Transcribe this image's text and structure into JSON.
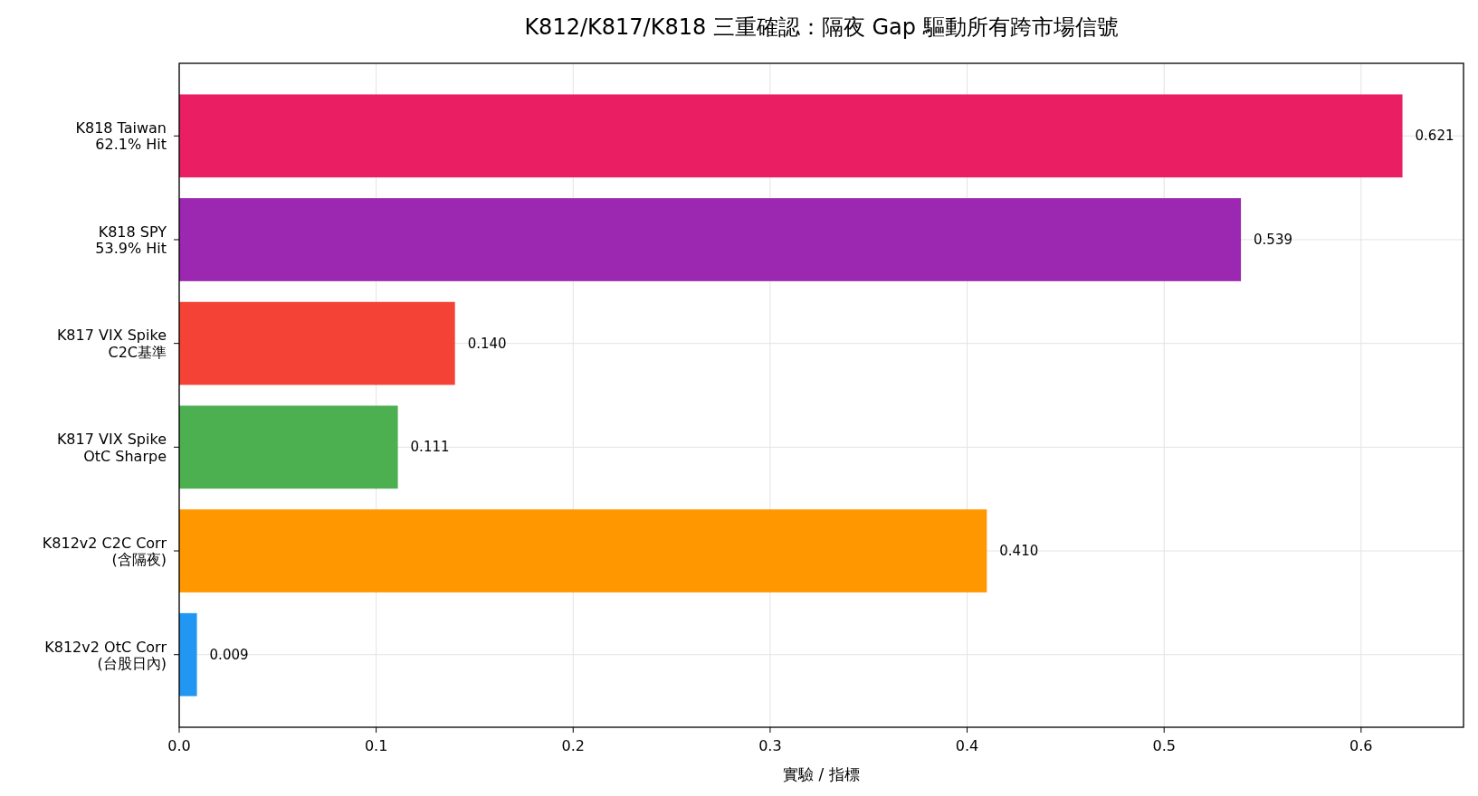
{
  "chart_data": {
    "type": "bar",
    "orientation": "horizontal",
    "title": "K812/K817/K818 三重確認：隔夜 Gap 驅動所有跨市場信號",
    "xlabel": "實驗 / 指標",
    "categories": [
      "K818 Taiwan\n62.1% Hit",
      "K818 SPY\n53.9% Hit",
      "K817 VIX Spike\nC2C基準",
      "K817 VIX Spike\nOtC Sharpe",
      "K812v2 C2C Corr\n(含隔夜)",
      "K812v2 OtC Corr\n(台股日內)"
    ],
    "values": [
      0.621,
      0.539,
      0.14,
      0.111,
      0.41,
      0.009
    ],
    "value_labels": [
      "0.621",
      "0.539",
      "0.140",
      "0.111",
      "0.410",
      "0.009"
    ],
    "colors": [
      "#e91e63",
      "#9c27b0",
      "#f44336",
      "#4caf50",
      "#ff9800",
      "#2196f3"
    ],
    "xlim": [
      0,
      0.652
    ],
    "xticks": [
      {
        "value": 0,
        "label": "0.0"
      },
      0.1,
      0.2,
      0.3,
      0.4,
      0.5,
      0.6
    ],
    "grid": true
  }
}
